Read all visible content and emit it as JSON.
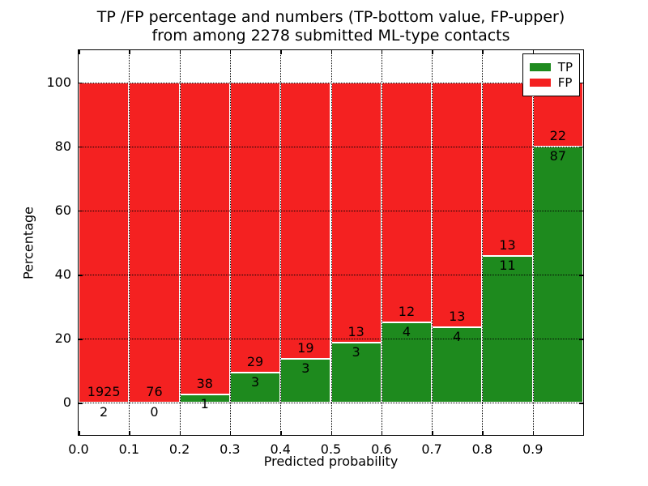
{
  "title": {
    "line1": "TP /FP percentage and numbers (TP-bottom value, FP-upper)",
    "line2": "from among 2278 submitted ML-type contacts"
  },
  "chart_data": {
    "type": "bar",
    "stacked": true,
    "normalized": "percent",
    "title": "TP /FP percentage and numbers (TP-bottom value, FP-upper)\nfrom among 2278 submitted ML-type contacts",
    "xlabel": "Predicted probability",
    "ylabel": "Percentage",
    "xlim": [
      0.0,
      1.0
    ],
    "ylim": [
      -10,
      110
    ],
    "x_tick_values": [
      0.0,
      0.1,
      0.2,
      0.3,
      0.4,
      0.5,
      0.6,
      0.7,
      0.8,
      0.9
    ],
    "x_tick_labels": [
      "0.0",
      "0.1",
      "0.2",
      "0.3",
      "0.4",
      "0.5",
      "0.6",
      "0.7",
      "0.8",
      "0.9"
    ],
    "y_tick_values": [
      0,
      20,
      40,
      60,
      80,
      100
    ],
    "y_tick_labels": [
      "0",
      "20",
      "40",
      "60",
      "80",
      "100"
    ],
    "grid": {
      "visible": true,
      "style": "dotted",
      "color": "#000000",
      "above_bars": true
    },
    "total_contacts": 2278,
    "categories": [
      "0.0-0.1",
      "0.1-0.2",
      "0.2-0.3",
      "0.3-0.4",
      "0.4-0.5",
      "0.5-0.6",
      "0.6-0.7",
      "0.7-0.8",
      "0.8-0.9",
      "0.9-1.0"
    ],
    "series": [
      {
        "name": "TP",
        "color": "#1e8a1e",
        "values": [
          2,
          0,
          1,
          3,
          3,
          3,
          4,
          4,
          11,
          87
        ]
      },
      {
        "name": "FP",
        "color": "#f42121",
        "values": [
          1925,
          76,
          38,
          29,
          19,
          13,
          12,
          13,
          13,
          22
        ]
      }
    ],
    "bar_label_note": "TP count below segment boundary, FP count above segment boundary",
    "legend": {
      "position": "upper right",
      "entries": [
        {
          "label": "TP",
          "color": "#1e8a1e"
        },
        {
          "label": "FP",
          "color": "#f42121"
        }
      ]
    }
  }
}
